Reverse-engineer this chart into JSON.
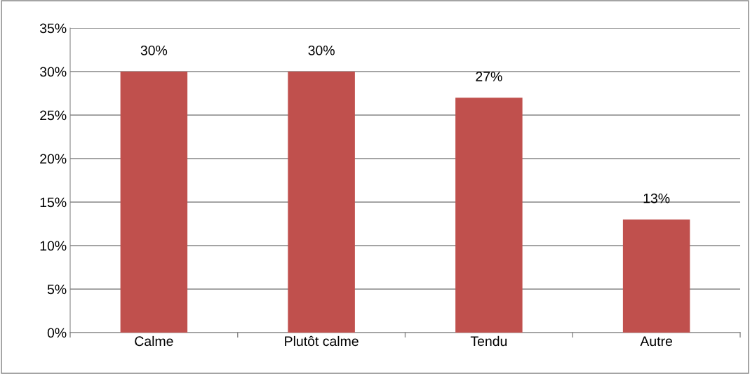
{
  "chart_data": {
    "type": "bar",
    "categories": [
      "Calme",
      "Plutôt calme",
      "Tendu",
      "Autre"
    ],
    "values": [
      30,
      30,
      27,
      13
    ],
    "value_labels": [
      "30%",
      "30%",
      "27%",
      "13%"
    ],
    "color": "#c0504d",
    "ylim": [
      0,
      35
    ],
    "yticks": [
      {
        "value": 0,
        "label": "0%"
      },
      {
        "value": 5,
        "label": "5%"
      },
      {
        "value": 10,
        "label": "10%"
      },
      {
        "value": 15,
        "label": "15%"
      },
      {
        "value": 20,
        "label": "20%"
      },
      {
        "value": 25,
        "label": "25%"
      },
      {
        "value": 30,
        "label": "30%"
      },
      {
        "value": 35,
        "label": "35%"
      }
    ],
    "grid": "y",
    "legend": false
  }
}
